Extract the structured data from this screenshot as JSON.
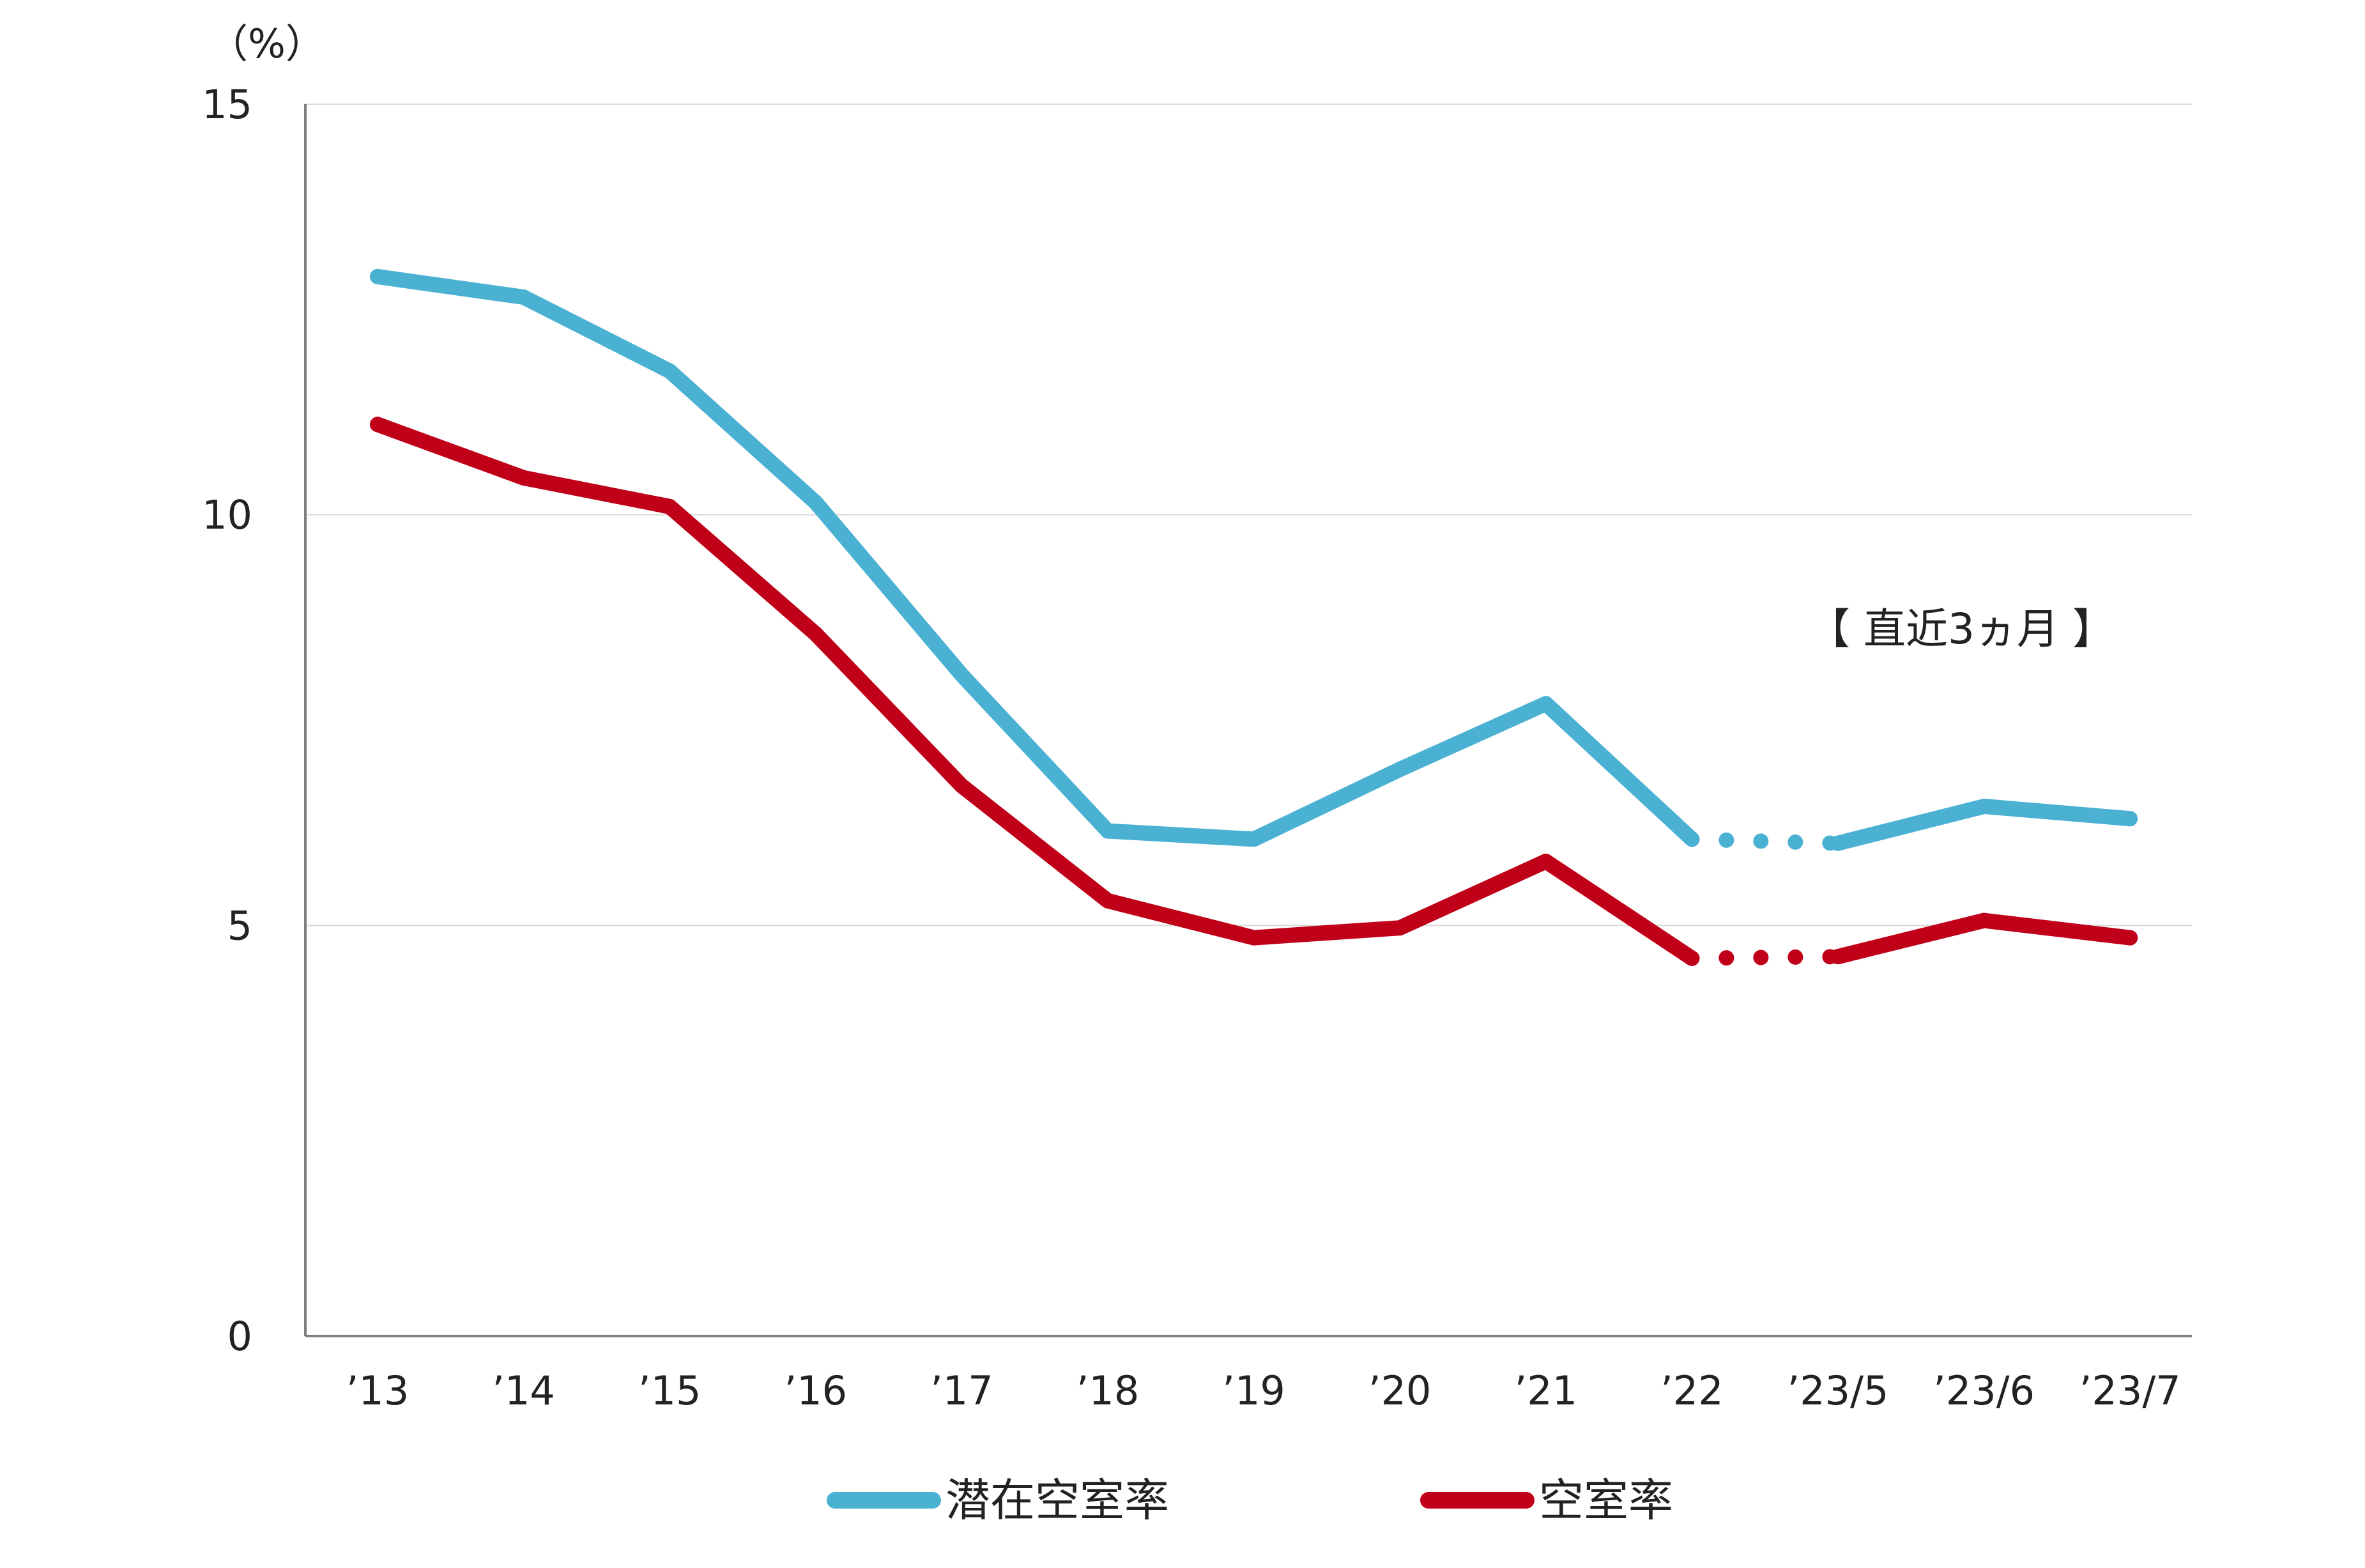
{
  "chart_data": {
    "type": "line",
    "unit_label": "（%）",
    "annotation": "【 直近3ヵ月 】",
    "categories": [
      "’13",
      "’14",
      "’15",
      "’16",
      "’17",
      "’18",
      "’19",
      "’20",
      "’21",
      "’22",
      "’23/5",
      "’23/6",
      "’23/7"
    ],
    "ylim": [
      0,
      15
    ],
    "yticks": [
      "0",
      "5",
      "10",
      "15"
    ],
    "grid": true,
    "legend_position": "bottom",
    "dotted_between": [
      "’22",
      "’23/5"
    ],
    "series": [
      {
        "name": "潜在空室率",
        "color": "#4bb1d3",
        "values": [
          12.9,
          12.65,
          11.75,
          10.15,
          8.05,
          6.15,
          6.05,
          6.9,
          7.7,
          6.05,
          6.0,
          6.45,
          6.3
        ]
      },
      {
        "name": "空室率",
        "color": "#c00018",
        "values": [
          11.1,
          10.45,
          10.1,
          8.55,
          6.7,
          5.3,
          4.85,
          4.97,
          5.78,
          4.6,
          4.62,
          5.06,
          4.85
        ]
      }
    ]
  }
}
